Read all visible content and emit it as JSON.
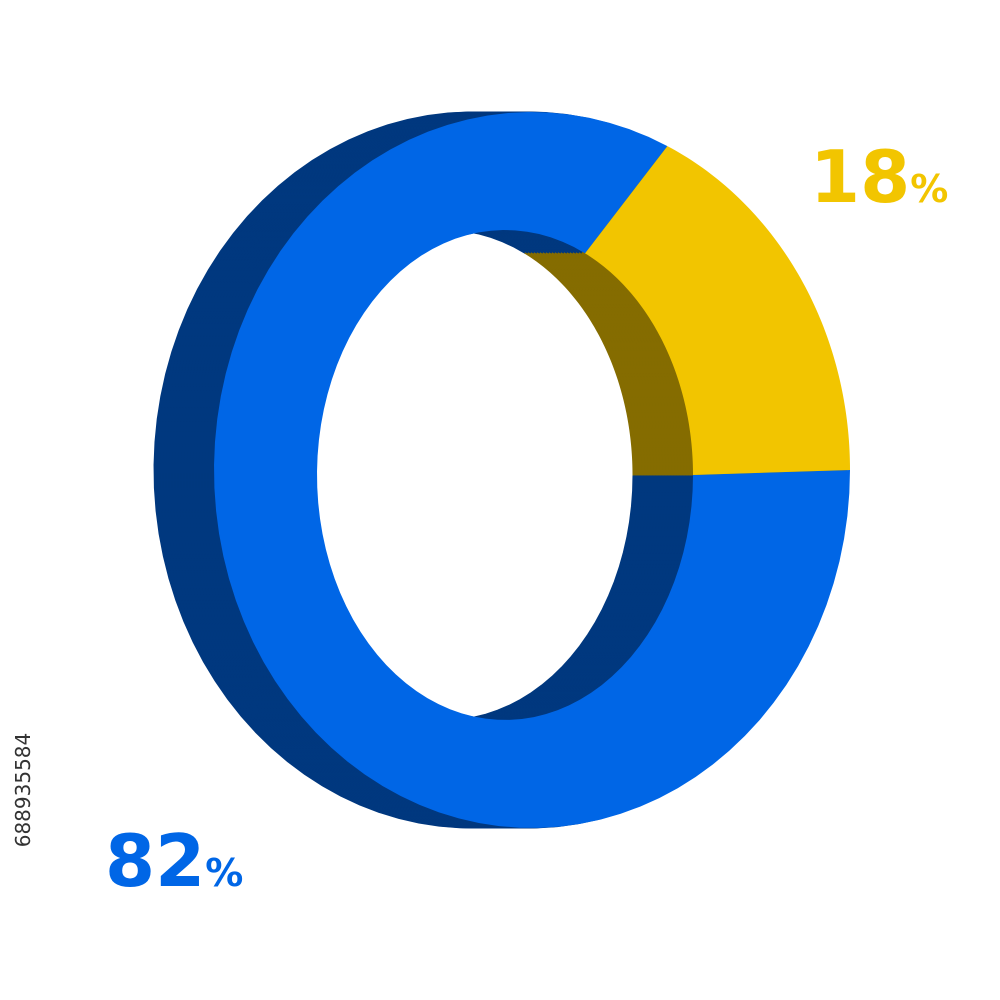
{
  "chart_data": {
    "type": "donut3d",
    "values": [
      82,
      18
    ],
    "value_labels": [
      "82%",
      "18%"
    ],
    "colors": [
      "#0066e6",
      "#f2c500"
    ],
    "annotation": "688935584"
  }
}
